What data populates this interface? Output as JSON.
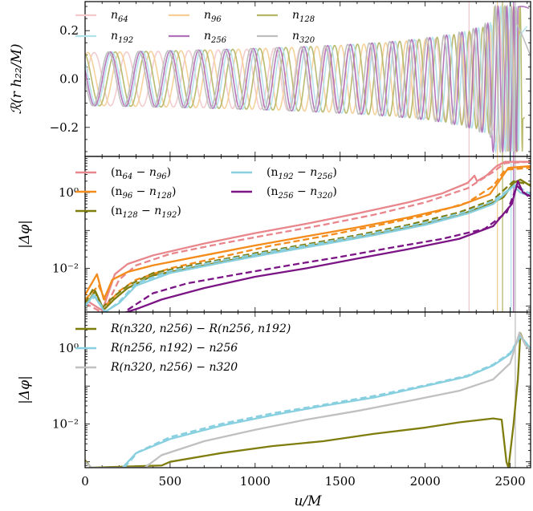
{
  "chart_data": [
    {
      "type": "line",
      "ylabel": "ℛ(r h₂₂/M)",
      "xlim": [
        0,
        2620
      ],
      "ylim": [
        -0.32,
        0.32
      ],
      "yticks": [
        -0.2,
        0.0,
        0.2
      ],
      "ytick_labels": [
        "−0.2",
        "0.0",
        "0.2"
      ],
      "legend": "top-left",
      "series": [
        {
          "name": "n64",
          "sub": "64",
          "color": "#f2c9cc",
          "end_x": 2500,
          "freq_scale": 1.04,
          "phase_offset": 0.0
        },
        {
          "name": "n96",
          "sub": "96",
          "color": "#f5cf96",
          "end_x": 2560,
          "freq_scale": 1.025,
          "phase_offset": 0.4
        },
        {
          "name": "n128",
          "sub": "128",
          "color": "#b5b768",
          "end_x": 2585,
          "freq_scale": 1.015,
          "phase_offset": 0.8
        },
        {
          "name": "n192",
          "sub": "192",
          "color": "#b3e1ec",
          "end_x": 2600,
          "freq_scale": 1.008,
          "phase_offset": 1.2
        },
        {
          "name": "n256",
          "sub": "256",
          "color": "#b071b8",
          "end_x": 2610,
          "freq_scale": 1.004,
          "phase_offset": 1.6
        },
        {
          "name": "n320",
          "sub": "320",
          "color": "#bfbfbf",
          "end_x": 2620,
          "freq_scale": 1.0,
          "phase_offset": 2.0
        }
      ],
      "vlines": [
        {
          "x": 2258,
          "color": "#f2c9cc"
        },
        {
          "x": 2425,
          "color": "#f5cf96"
        },
        {
          "x": 2455,
          "color": "#b5b768"
        },
        {
          "x": 2505,
          "color": "#b3e1ec"
        },
        {
          "x": 2520,
          "color": "#b071b8"
        },
        {
          "x": 2530,
          "color": "#bfbfbf"
        }
      ],
      "waveform": {
        "amplitude_start": 0.11,
        "cycles": 22,
        "t_merger": 2540
      }
    },
    {
      "type": "line",
      "yscale": "log",
      "ylabel": "|Δφ|",
      "xlim": [
        0,
        2620
      ],
      "ylim": [
        0.0007,
        9
      ],
      "yticks": [
        0.01,
        1
      ],
      "ytick_labels": [
        "10⁻²",
        "10⁰"
      ],
      "legend": "top-left",
      "series": [
        {
          "name": "(n64 − n96)",
          "a": "64",
          "b": "96",
          "color": "#e8868c",
          "solid": [
            [
              0,
              0.0015
            ],
            [
              95,
              0.0008
            ],
            [
              110,
              0.001
            ],
            [
              175,
              0.007
            ],
            [
              250,
              0.013
            ],
            [
              400,
              0.022
            ],
            [
              700,
              0.045
            ],
            [
              1000,
              0.085
            ],
            [
              1300,
              0.15
            ],
            [
              1600,
              0.28
            ],
            [
              1900,
              0.55
            ],
            [
              2100,
              0.95
            ],
            [
              2250,
              1.8
            ],
            [
              2290,
              2.8
            ],
            [
              2305,
              2.0
            ],
            [
              2360,
              2.8
            ],
            [
              2420,
              5.0
            ],
            [
              2470,
              6.5
            ],
            [
              2620,
              6.5
            ]
          ],
          "dashed": [
            [
              0,
              0.0012
            ],
            [
              95,
              0.0007
            ],
            [
              120,
              0.0009
            ],
            [
              200,
              0.005
            ],
            [
              300,
              0.012
            ],
            [
              500,
              0.024
            ],
            [
              800,
              0.045
            ],
            [
              1100,
              0.08
            ],
            [
              1400,
              0.14
            ],
            [
              1700,
              0.26
            ],
            [
              2000,
              0.55
            ],
            [
              2250,
              1.3
            ],
            [
              2400,
              3.5
            ],
            [
              2470,
              6.0
            ],
            [
              2620,
              6.5
            ]
          ]
        },
        {
          "name": "(n96 − n128)",
          "a": "96",
          "b": "128",
          "color": "#f48c1c",
          "solid": [
            [
              0,
              0.002
            ],
            [
              70,
              0.007
            ],
            [
              110,
              0.0015
            ],
            [
              160,
              0.005
            ],
            [
              250,
              0.008
            ],
            [
              400,
              0.012
            ],
            [
              700,
              0.022
            ],
            [
              1000,
              0.04
            ],
            [
              1300,
              0.07
            ],
            [
              1600,
              0.12
            ],
            [
              1900,
              0.22
            ],
            [
              2200,
              0.45
            ],
            [
              2380,
              0.9
            ],
            [
              2450,
              2.5
            ],
            [
              2490,
              4.5
            ],
            [
              2620,
              5.0
            ]
          ],
          "dashed": [
            [
              0,
              0.0015
            ],
            [
              80,
              0.0035
            ],
            [
              130,
              0.0011
            ],
            [
              200,
              0.0025
            ],
            [
              300,
              0.005
            ],
            [
              500,
              0.01
            ],
            [
              800,
              0.02
            ],
            [
              1100,
              0.04
            ],
            [
              1400,
              0.07
            ],
            [
              1700,
              0.13
            ],
            [
              2000,
              0.25
            ],
            [
              2250,
              0.55
            ],
            [
              2400,
              1.5
            ],
            [
              2470,
              4.0
            ],
            [
              2620,
              4.5
            ]
          ]
        },
        {
          "name": "(n128 − n192)",
          "a": "128",
          "b": "192",
          "color": "#7f7d0e",
          "solid": [
            [
              0,
              0.001
            ],
            [
              60,
              0.0025
            ],
            [
              110,
              0.0008
            ],
            [
              170,
              0.0015
            ],
            [
              250,
              0.003
            ],
            [
              400,
              0.0065
            ],
            [
              700,
              0.012
            ],
            [
              1000,
              0.022
            ],
            [
              1300,
              0.038
            ],
            [
              1600,
              0.065
            ],
            [
              1900,
              0.12
            ],
            [
              2200,
              0.25
            ],
            [
              2400,
              0.55
            ],
            [
              2460,
              0.75
            ],
            [
              2520,
              1.8
            ],
            [
              2560,
              2.2
            ],
            [
              2620,
              1.5
            ]
          ],
          "dashed": [
            [
              0,
              0.0012
            ],
            [
              50,
              0.003
            ],
            [
              100,
              0.0009
            ],
            [
              170,
              0.0018
            ],
            [
              250,
              0.0035
            ],
            [
              400,
              0.0075
            ],
            [
              700,
              0.014
            ],
            [
              1000,
              0.025
            ],
            [
              1300,
              0.043
            ],
            [
              1600,
              0.075
            ],
            [
              1900,
              0.14
            ],
            [
              2200,
              0.3
            ],
            [
              2400,
              0.65
            ],
            [
              2520,
              2.0
            ],
            [
              2620,
              1.6
            ]
          ]
        },
        {
          "name": "(n192 − n256)",
          "a": "192",
          "b": "256",
          "color": "#88cfe0",
          "solid": [
            [
              0,
              0.001
            ],
            [
              50,
              0.002
            ],
            [
              115,
              0.0007
            ],
            [
              200,
              0.0012
            ],
            [
              300,
              0.0035
            ],
            [
              500,
              0.0075
            ],
            [
              800,
              0.014
            ],
            [
              1100,
              0.025
            ],
            [
              1400,
              0.043
            ],
            [
              1700,
              0.075
            ],
            [
              2000,
              0.14
            ],
            [
              2250,
              0.28
            ],
            [
              2400,
              0.5
            ],
            [
              2520,
              1.5
            ],
            [
              2560,
              1.0
            ],
            [
              2620,
              0.8
            ]
          ],
          "dashed": [
            [
              0,
              0.0011
            ],
            [
              60,
              0.0018
            ],
            [
              120,
              0.0007
            ],
            [
              200,
              0.0013
            ],
            [
              300,
              0.004
            ],
            [
              500,
              0.0085
            ],
            [
              800,
              0.016
            ],
            [
              1100,
              0.028
            ],
            [
              1400,
              0.048
            ],
            [
              1700,
              0.085
            ],
            [
              2000,
              0.16
            ],
            [
              2250,
              0.32
            ],
            [
              2400,
              0.6
            ],
            [
              2530,
              1.6
            ],
            [
              2620,
              0.9
            ]
          ]
        },
        {
          "name": "(n256 − n320)",
          "a": "256",
          "b": "320",
          "color": "#7b1485",
          "solid": [
            [
              200,
              0.0006
            ],
            [
              320,
              0.0009
            ],
            [
              450,
              0.0015
            ],
            [
              700,
              0.003
            ],
            [
              1000,
              0.006
            ],
            [
              1300,
              0.01
            ],
            [
              1600,
              0.018
            ],
            [
              1900,
              0.032
            ],
            [
              2200,
              0.06
            ],
            [
              2400,
              0.13
            ],
            [
              2510,
              0.5
            ],
            [
              2545,
              2.0
            ],
            [
              2575,
              1.0
            ],
            [
              2620,
              0.8
            ]
          ],
          "dashed": [
            [
              250,
              0.0008
            ],
            [
              400,
              0.0022
            ],
            [
              600,
              0.004
            ],
            [
              900,
              0.007
            ],
            [
              1200,
              0.012
            ],
            [
              1500,
              0.02
            ],
            [
              1800,
              0.035
            ],
            [
              2100,
              0.06
            ],
            [
              2350,
              0.11
            ],
            [
              2480,
              0.3
            ],
            [
              2540,
              1.5
            ],
            [
              2620,
              0.7
            ]
          ]
        }
      ],
      "vlines": [
        {
          "x": 2258,
          "color": "#f2c9cc"
        },
        {
          "x": 2425,
          "color": "#f5cf96"
        },
        {
          "x": 2455,
          "color": "#b5b768"
        },
        {
          "x": 2505,
          "color": "#b3e1ec"
        },
        {
          "x": 2520,
          "color": "#b071b8"
        },
        {
          "x": 2530,
          "color": "#bfbfbf"
        }
      ]
    },
    {
      "type": "line",
      "yscale": "log",
      "ylabel": "|Δφ|",
      "xlabel": "u/M",
      "xlim": [
        0,
        2620
      ],
      "ylim": [
        0.0007,
        9
      ],
      "yticks": [
        0.01,
        1
      ],
      "ytick_labels": [
        "10⁻²",
        "10⁰"
      ],
      "xticks": [
        0,
        500,
        1000,
        1500,
        2000,
        2500
      ],
      "legend": "top-left",
      "series": [
        {
          "name": "R(n320, n256) − R(n256, n192)",
          "color": "#7f7d0e",
          "solid": [
            [
              0,
              0.0011
            ],
            [
              35,
              0.0007
            ],
            [
              450,
              0.0008
            ],
            [
              500,
              0.001
            ],
            [
              800,
              0.0017
            ],
            [
              1100,
              0.0026
            ],
            [
              1400,
              0.0035
            ],
            [
              1700,
              0.0055
            ],
            [
              2000,
              0.008
            ],
            [
              2200,
              0.011
            ],
            [
              2400,
              0.014
            ],
            [
              2450,
              0.013
            ],
            [
              2478,
              0.001
            ],
            [
              2490,
              0.0007
            ],
            [
              2520,
              0.01
            ],
            [
              2545,
              0.15
            ],
            [
              2560,
              2.5
            ],
            [
              2580,
              1.5
            ],
            [
              2620,
              1.0
            ]
          ],
          "dashed": []
        },
        {
          "name": "R(n256, n192) − n256",
          "color": "#88cfe0",
          "solid": [
            [
              220,
              0.0007
            ],
            [
              300,
              0.0017
            ],
            [
              500,
              0.004
            ],
            [
              800,
              0.009
            ],
            [
              1100,
              0.017
            ],
            [
              1400,
              0.03
            ],
            [
              1700,
              0.05
            ],
            [
              2000,
              0.1
            ],
            [
              2250,
              0.18
            ],
            [
              2400,
              0.35
            ],
            [
              2500,
              0.7
            ],
            [
              2560,
              2.0
            ],
            [
              2600,
              1.2
            ],
            [
              2620,
              1.0
            ]
          ],
          "dashed": [
            [
              230,
              0.0007
            ],
            [
              310,
              0.0018
            ],
            [
              500,
              0.0045
            ],
            [
              800,
              0.01
            ],
            [
              1100,
              0.019
            ],
            [
              1400,
              0.032
            ],
            [
              1700,
              0.055
            ],
            [
              2000,
              0.105
            ],
            [
              2250,
              0.19
            ],
            [
              2400,
              0.37
            ],
            [
              2500,
              0.75
            ],
            [
              2560,
              2.1
            ],
            [
              2620,
              1.0
            ]
          ]
        },
        {
          "name": "R(n320, n256) − n320",
          "color": "#c0c0c0",
          "solid": [
            [
              0,
              0.001
            ],
            [
              40,
              0.0007
            ],
            [
              350,
              0.0007
            ],
            [
              450,
              0.0015
            ],
            [
              700,
              0.0035
            ],
            [
              1000,
              0.007
            ],
            [
              1300,
              0.013
            ],
            [
              1600,
              0.022
            ],
            [
              1900,
              0.04
            ],
            [
              2200,
              0.075
            ],
            [
              2400,
              0.15
            ],
            [
              2500,
              0.4
            ],
            [
              2555,
              2.6
            ],
            [
              2590,
              1.2
            ],
            [
              2620,
              0.9
            ]
          ],
          "dashed": []
        }
      ],
      "vlines": [
        {
          "x": 2530,
          "color": "#c0c0c0"
        }
      ]
    }
  ]
}
